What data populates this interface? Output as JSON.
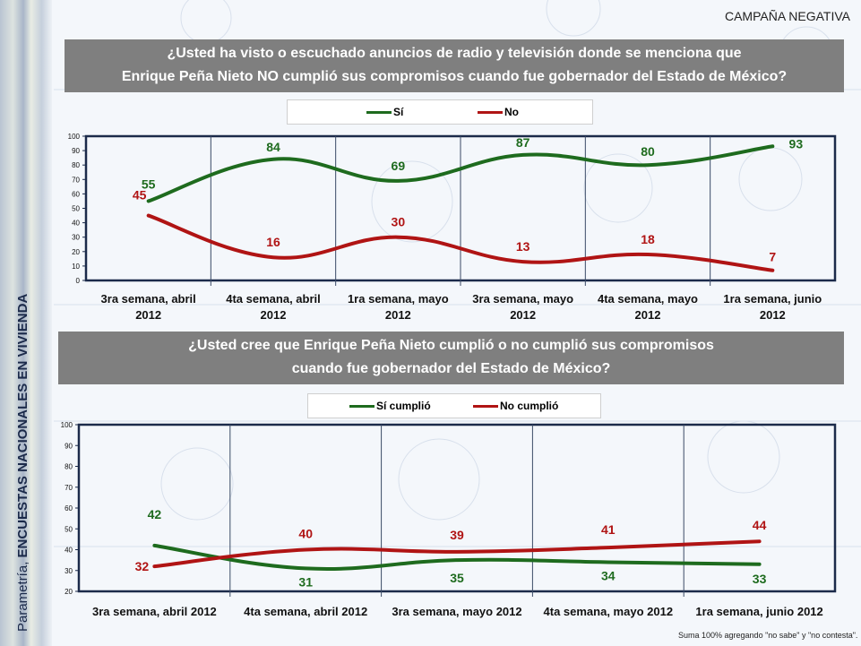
{
  "header": {
    "tag": "CAMPAÑA NEGATIVA"
  },
  "sidebar": {
    "prefix": "Parametría, ",
    "bold": "ENCUESTAS NACIONALES EN VIVIENDA"
  },
  "colors": {
    "green": "#1e6b1e",
    "red": "#b01414",
    "titlebar": "#7f7f7f",
    "axis": "#1b2a4a"
  },
  "chart1": {
    "title_line1": "¿Usted ha visto o escuchado anuncios de radio y televisión donde se menciona que",
    "title_line2": "Enrique Peña Nieto NO cumplió sus compromisos cuando fue gobernador del Estado de México?",
    "legend": [
      "Sí",
      "No"
    ]
  },
  "chart2": {
    "title_line1": "¿Usted cree que Enrique Peña Nieto cumplió o no cumplió sus compromisos",
    "title_line2": "cuando fue gobernador del Estado de México?",
    "legend": [
      "Sí cumplió",
      "No cumplió"
    ]
  },
  "footnote": "Suma 100%  agregando \"no sabe\" y \"no contesta\".",
  "chart_data": [
    {
      "type": "line",
      "title": "¿Usted ha visto o escuchado anuncios de radio y televisión donde se menciona que Enrique Peña Nieto NO cumplió sus compromisos cuando fue gobernador del Estado de México?",
      "categories": [
        [
          "3ra semana, abril",
          "2012"
        ],
        [
          "4ta semana, abril",
          "2012"
        ],
        [
          "1ra semana, mayo",
          "2012"
        ],
        [
          "3ra semana, mayo",
          "2012"
        ],
        [
          "4ta semana, mayo",
          "2012"
        ],
        [
          "1ra semana, junio",
          "2012"
        ]
      ],
      "series": [
        {
          "name": "Sí",
          "values": [
            55,
            84,
            69,
            87,
            80,
            93
          ]
        },
        {
          "name": "No",
          "values": [
            45,
            16,
            30,
            13,
            18,
            7
          ]
        }
      ],
      "ylim": [
        0,
        100
      ],
      "yticks": [
        0,
        10,
        20,
        30,
        40,
        50,
        60,
        70,
        80,
        90,
        100
      ],
      "legend_position": "top"
    },
    {
      "type": "line",
      "title": "¿Usted cree que Enrique Peña Nieto cumplió o no cumplió sus compromisos cuando fue gobernador del Estado de México?",
      "categories": [
        [
          "3ra semana, abril 2012"
        ],
        [
          "4ta semana, abril 2012"
        ],
        [
          "3ra semana, mayo 2012"
        ],
        [
          "4ta semana, mayo 2012"
        ],
        [
          "1ra semana, junio 2012"
        ]
      ],
      "series": [
        {
          "name": "Sí cumplió",
          "values": [
            42,
            31,
            35,
            34,
            33
          ]
        },
        {
          "name": "No cumplió",
          "values": [
            32,
            40,
            39,
            41,
            44
          ]
        }
      ],
      "ylim": [
        20,
        100
      ],
      "yticks": [
        20,
        30,
        40,
        50,
        60,
        70,
        80,
        90,
        100
      ],
      "legend_position": "top"
    }
  ]
}
